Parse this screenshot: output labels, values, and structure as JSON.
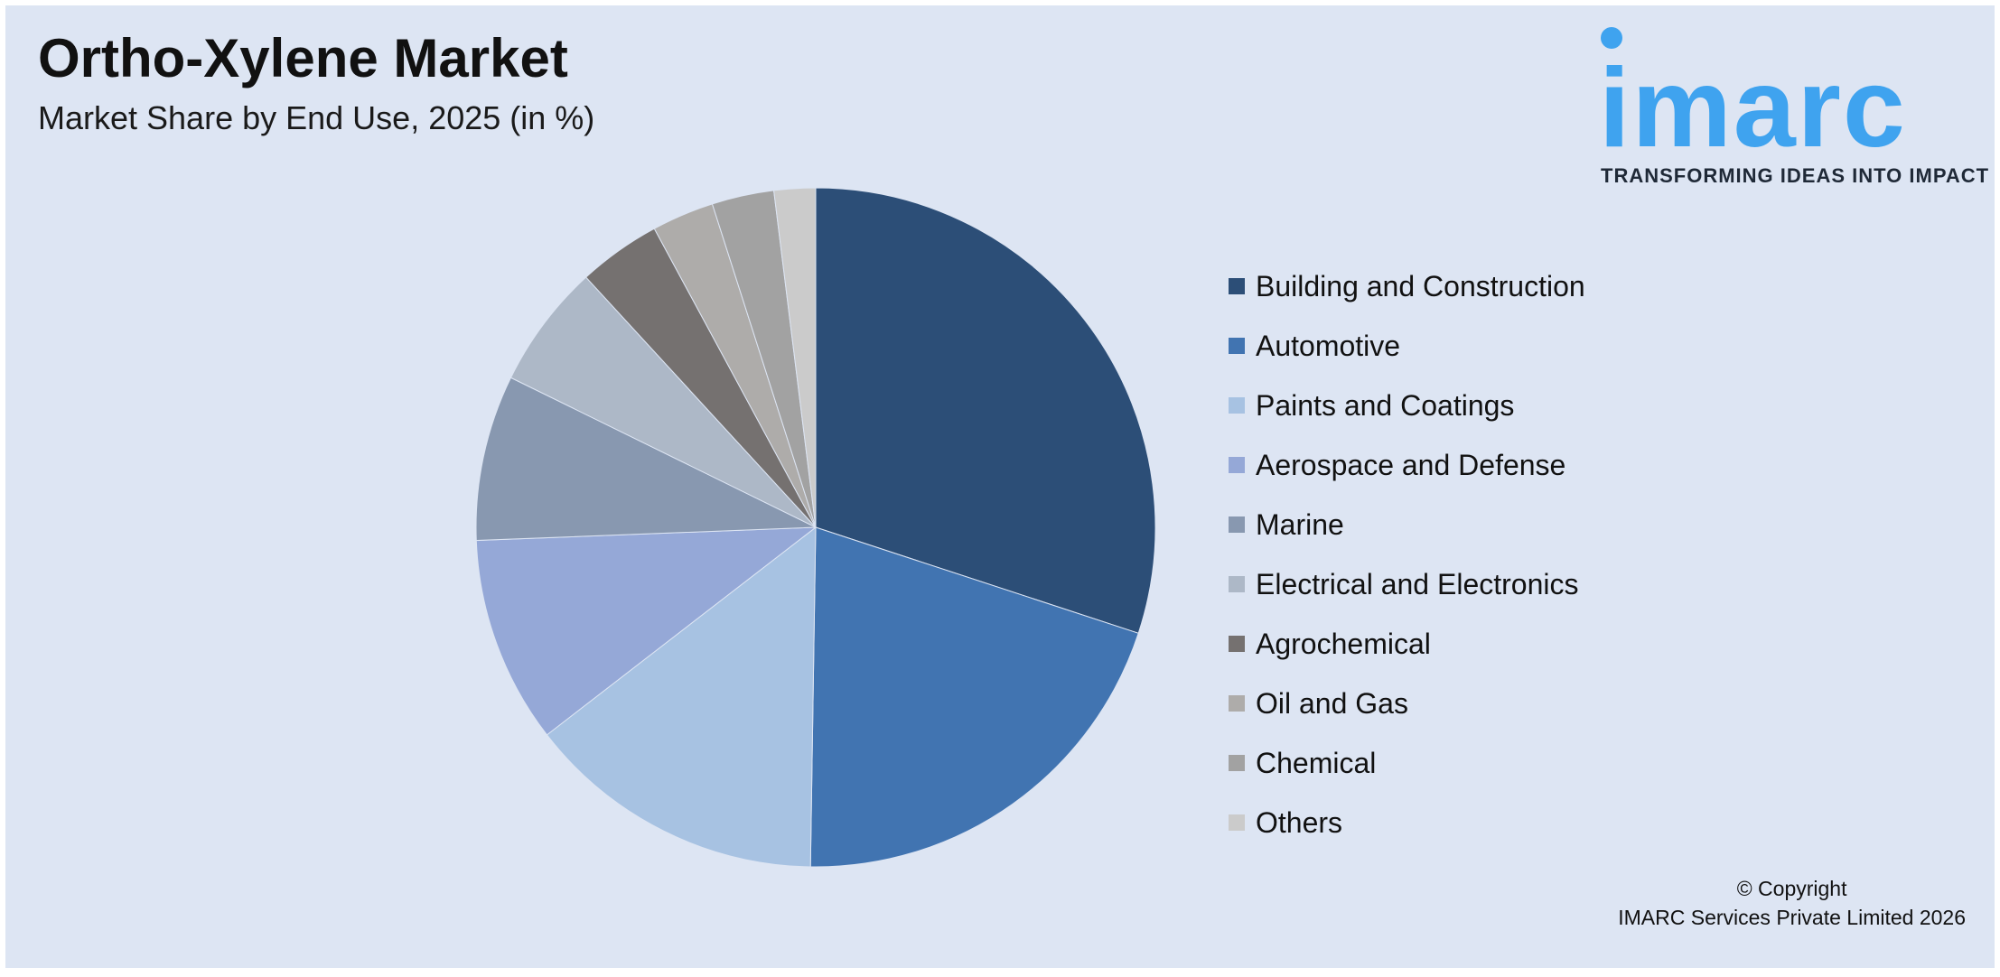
{
  "header": {
    "title": "Ortho-Xylene Market",
    "subtitle": "Market Share by End Use, 2025 (in %)"
  },
  "logo": {
    "word": "imarc",
    "tagline": "TRANSFORMING IDEAS INTO IMPACT",
    "color": "#3fa3ef"
  },
  "chart_data": {
    "type": "pie",
    "title": "Ortho-Xylene Market",
    "subtitle": "Market Share by End Use, 2025 (in %)",
    "legend_position": "right",
    "categories": [
      "Building and Construction",
      "Automotive",
      "Paints and Coatings",
      "Aerospace and Defense",
      "Marine",
      "Electrical and Electronics",
      "Agrochemical",
      "Oil and Gas",
      "Chemical",
      "Others"
    ],
    "values": [
      30.5,
      20.5,
      14.5,
      10.0,
      8.0,
      6.0,
      4.0,
      3.0,
      3.0,
      2.0
    ],
    "colors": [
      "#2c4e77",
      "#4174b1",
      "#a7c2e2",
      "#95a8d7",
      "#8898b0",
      "#adb8c7",
      "#757170",
      "#aeacaa",
      "#a2a2a2",
      "#cbcbcb"
    ]
  },
  "footer": {
    "copyright_line1": "© Copyright",
    "copyright_line2": "IMARC Services Private Limited 2026"
  }
}
